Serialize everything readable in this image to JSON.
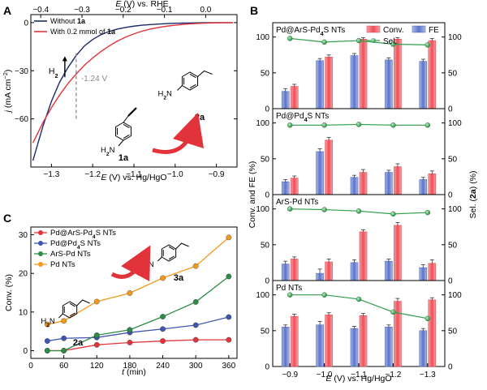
{
  "panel_letters": {
    "a": "A",
    "b": "B",
    "c": "C"
  },
  "chart_data": [
    {
      "id": "A",
      "type": "line",
      "xlabel_parts": [
        "E",
        " (V)",
        " vs. Hg/HgO"
      ],
      "top_xlabel_parts": [
        "E",
        " (V) vs. RHE"
      ],
      "ylabel_parts": [
        "j",
        " (mA cm",
        "−2",
        ")"
      ],
      "xlim": [
        -1.35,
        -0.85
      ],
      "ylim": [
        -90,
        5
      ],
      "xticks": [
        -1.3,
        -1.2,
        -1.1,
        -1.0,
        -0.9
      ],
      "xtick_labels": [
        "−1.3",
        "−1.2",
        "−1.1",
        "−1.0",
        "−0.9"
      ],
      "yticks": [
        0,
        -30,
        -60
      ],
      "ytick_labels": [
        "0",
        "−30",
        "−60"
      ],
      "top_xticks": [
        -0.4,
        -0.3,
        -0.2,
        -0.1,
        0.0
      ],
      "top_xtick_labels": [
        "−0.4",
        "−0.3",
        "−0.2",
        "−0.1",
        "0.0"
      ],
      "rhe_offset": 0.926,
      "legend": {
        "placement": "top-left",
        "entries": [
          {
            "parts": [
              "Without ",
              "1a"
            ]
          },
          {
            "parts": [
              "With 0.2 mmol of ",
              "1a"
            ]
          }
        ]
      },
      "series": [
        {
          "name": "Without 1a",
          "color": "#1a2a6c",
          "x": [
            -1.345,
            -1.32,
            -1.3,
            -1.28,
            -1.26,
            -1.24,
            -1.22,
            -1.2,
            -1.18,
            -1.16,
            -1.14,
            -1.12,
            -1.1,
            -1.08,
            -1.06,
            -1.04,
            -1.02,
            -1.0,
            -0.98,
            -0.96,
            -0.94,
            -0.92,
            -0.9,
            -0.88,
            -0.86
          ],
          "y": [
            -86,
            -64,
            -49,
            -37,
            -28,
            -20.5,
            -14.5,
            -10.5,
            -7.5,
            -5.5,
            -4.0,
            -3.0,
            -2.2,
            -1.6,
            -1.2,
            -0.9,
            -0.6,
            -0.4,
            -0.3,
            -0.2,
            -0.1,
            -0.05,
            0,
            0,
            0
          ]
        },
        {
          "name": "With 0.2 mmol of 1a",
          "color": "#e2333a",
          "x": [
            -1.345,
            -1.32,
            -1.3,
            -1.28,
            -1.26,
            -1.24,
            -1.22,
            -1.2,
            -1.18,
            -1.16,
            -1.14,
            -1.12,
            -1.1,
            -1.08,
            -1.06,
            -1.04,
            -1.02,
            -1.0,
            -0.98,
            -0.96,
            -0.94,
            -0.92,
            -0.9,
            -0.88,
            -0.86
          ],
          "y": [
            -75,
            -62,
            -53,
            -45,
            -38,
            -32,
            -26.5,
            -22,
            -18,
            -14.5,
            -11.5,
            -9,
            -7,
            -5.3,
            -4,
            -3,
            -2.2,
            -1.6,
            -1.1,
            -0.7,
            -0.45,
            -0.25,
            -0.12,
            -0.05,
            0
          ]
        }
      ],
      "annotations": {
        "dashed_x": -1.24,
        "dashed_label": "-1.24 V",
        "h2_label": "H",
        "h2_sub": "2",
        "mol_start_label": "1a",
        "mol_end_label": "2a",
        "nh2": "H",
        "nh2_sub": "2",
        "nh2_n": "N"
      }
    },
    {
      "id": "B",
      "type": "bar",
      "categories": [
        "-0.9",
        "-1.0",
        "-1.1",
        "-1.2",
        "-1.3"
      ],
      "xtick_labels": [
        "−0.9",
        "−1.0",
        "−1.1",
        "−1.2",
        "−1.3"
      ],
      "xlabel_parts": [
        "E",
        " (V)",
        " vs. Hg/HgO"
      ],
      "ylabel": "Conv. and FE (%)",
      "right_ylabel_parts": [
        "Sel. (",
        "2a",
        ") (%)"
      ],
      "ylim": [
        0,
        120
      ],
      "yticks": [
        0,
        50,
        100
      ],
      "legend": {
        "placement": "top-right",
        "conv": "Conv.",
        "fe": "FE",
        "sel": "Sel."
      },
      "colors": {
        "conv": "#f0626a",
        "fe": "#6a84d4",
        "sel": "#2e9e4a"
      },
      "subplots": [
        {
          "title_parts": [
            "Pd@ArS-Pd",
            "4",
            "S NTs"
          ],
          "fe": [
            24,
            67,
            74,
            68,
            66
          ],
          "fe_err": [
            4,
            3,
            3,
            3,
            3
          ],
          "conv": [
            31,
            72,
            97,
            97,
            95
          ],
          "conv_err": [
            3,
            3,
            2,
            2,
            3
          ],
          "sel": [
            98,
            93,
            95,
            90,
            89
          ]
        },
        {
          "title_parts": [
            "Pd@Pd",
            "4",
            "S NTs"
          ],
          "fe": [
            18,
            60,
            24,
            31,
            21
          ],
          "fe_err": [
            3,
            4,
            3,
            3,
            3
          ],
          "conv": [
            23,
            76,
            31,
            39,
            29
          ],
          "conv_err": [
            3,
            4,
            4,
            4,
            4
          ],
          "sel": [
            97,
            97,
            98,
            97,
            97
          ]
        },
        {
          "title_parts": [
            "ArS-Pd NTs"
          ],
          "fe": [
            23,
            10,
            25,
            27,
            18
          ],
          "fe_err": [
            4,
            6,
            4,
            3,
            4
          ],
          "conv": [
            30,
            26,
            68,
            77,
            24
          ],
          "conv_err": [
            3,
            4,
            3,
            4,
            5
          ],
          "sel": [
            100,
            99,
            97,
            93,
            95
          ]
        },
        {
          "title_parts": [
            "Pd NTs"
          ],
          "fe": [
            55,
            58,
            53,
            55,
            50
          ],
          "fe_err": [
            3,
            5,
            3,
            3,
            3
          ],
          "conv": [
            70,
            72,
            71,
            91,
            93
          ],
          "conv_err": [
            3,
            3,
            3,
            4,
            3
          ],
          "sel": [
            100,
            100,
            94,
            76,
            67
          ]
        }
      ]
    },
    {
      "id": "C",
      "type": "line",
      "xlabel_parts": [
        "t",
        " (min)"
      ],
      "ylabel": "Conv. (%)",
      "xlim": [
        0,
        375
      ],
      "ylim": [
        -2,
        32
      ],
      "xticks": [
        0,
        60,
        120,
        180,
        240,
        300,
        360
      ],
      "yticks": [
        0,
        10,
        20,
        30
      ],
      "legend": {
        "placement": "top-left"
      },
      "series": [
        {
          "name_parts": [
            "Pd@ArS-Pd",
            "4",
            "S NTs"
          ],
          "color": "#e2333a",
          "x": [
            30,
            60,
            120,
            180,
            240,
            300,
            360
          ],
          "y": [
            0,
            0,
            1.5,
            2.1,
            2.5,
            2.8,
            2.8
          ]
        },
        {
          "name_parts": [
            "Pd@Pd",
            "4",
            "S NTs"
          ],
          "color": "#3f55b0",
          "x": [
            30,
            60,
            120,
            180,
            240,
            300,
            360
          ],
          "y": [
            2.5,
            3.2,
            3.4,
            4.7,
            5.6,
            6.6,
            8.7
          ]
        },
        {
          "name_parts": [
            "ArS-Pd NTs"
          ],
          "color": "#2e8b45",
          "x": [
            30,
            60,
            120,
            180,
            240,
            300,
            360
          ],
          "y": [
            0,
            0,
            4,
            5.4,
            8.8,
            12.6,
            19.2
          ]
        },
        {
          "name_parts": [
            "Pd NTs"
          ],
          "color": "#f39a1e",
          "x": [
            30,
            60,
            120,
            180,
            240,
            300,
            360
          ],
          "y": [
            6.8,
            7.7,
            12.7,
            14.9,
            18.8,
            21.9,
            29.3
          ]
        }
      ],
      "annotations": {
        "mol_start_label": "2a",
        "mol_end_label": "3a",
        "nh2": "H",
        "nh2_sub": "2",
        "nh2_n": "N"
      }
    }
  ]
}
